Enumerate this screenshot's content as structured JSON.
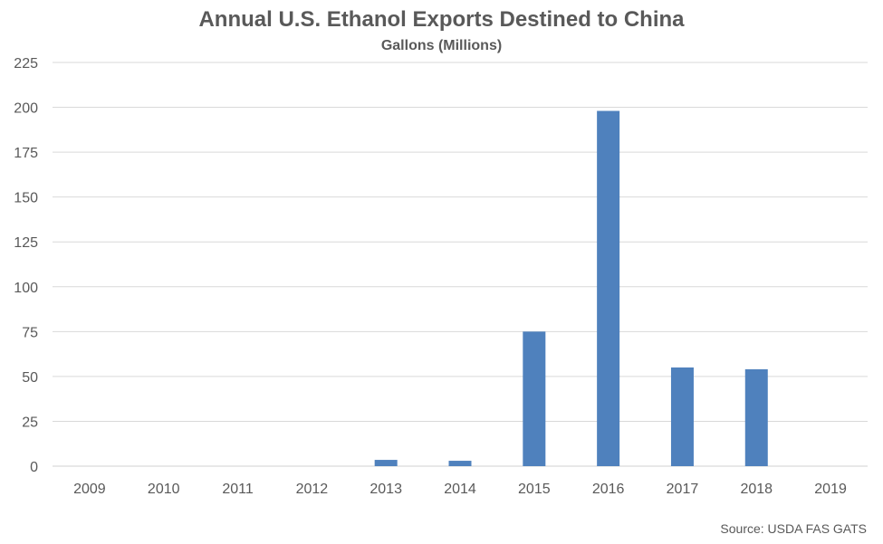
{
  "chart_data": {
    "type": "bar",
    "title": "Annual U.S. Ethanol Exports Destined to China",
    "subtitle": "Gallons (Millions)",
    "xlabel": "",
    "ylabel": "",
    "categories": [
      "2009",
      "2010",
      "2011",
      "2012",
      "2013",
      "2014",
      "2015",
      "2016",
      "2017",
      "2018",
      "2019"
    ],
    "values": [
      0,
      0,
      0,
      0,
      3.5,
      3,
      75,
      198,
      55,
      54,
      0
    ],
    "ylim": [
      0,
      225
    ],
    "yticks": [
      0,
      25,
      50,
      75,
      100,
      125,
      150,
      175,
      200,
      225
    ],
    "grid": true,
    "legend": "none",
    "bar_color": "#4f81bd",
    "gridline_color": "#d9d9d9",
    "text_color": "#595959",
    "source": "Source: USDA FAS GATS"
  }
}
